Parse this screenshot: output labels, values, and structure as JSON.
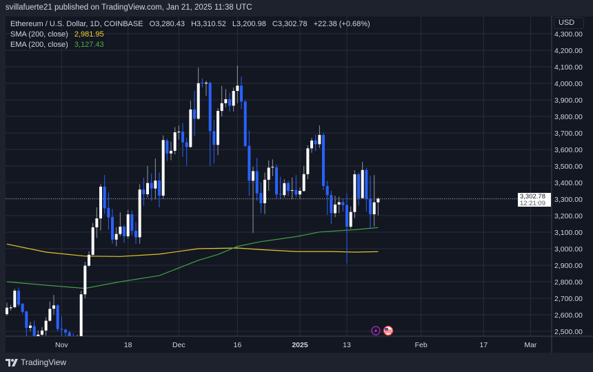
{
  "publisher_line": "svillafuerte21 published on TradingView.com, Jan 21, 2025 11:38 UTC",
  "legend": {
    "symbol": "Ethereum / U.S. Dollar, 1D, COINBASE",
    "open": "O3,280.43",
    "high": "H3,310.52",
    "low": "L3,200.98",
    "close": "C3,302.78",
    "change": "+22.38 (+0.68%)",
    "sma_label": "SMA (200, close)",
    "sma_value": "2,981.95",
    "ema_label": "EMA (200, close)",
    "ema_value": "3,127.43"
  },
  "price_axis": {
    "currency": "USD",
    "last_price": "3,302.78",
    "countdown": "12:21:09"
  },
  "footer": {
    "brand": "TradingView"
  },
  "colors": {
    "background": "#131722",
    "up": "#ffffff",
    "down": "#2962ff",
    "sma": "#e6c729",
    "ema": "#43a047",
    "grid": "#2a2e39"
  },
  "icons": [
    "lightning-event-icon",
    "us-flag-event-icon",
    "tradingview-logo-icon"
  ],
  "chart_data": {
    "type": "candlestick",
    "title": "Ethereum / U.S. Dollar, 1D, COINBASE",
    "ylim": [
      2471,
      4404
    ],
    "grid": true,
    "price_ticks": [
      "4,300.00",
      "4,200.00",
      "4,100.00",
      "4,000.00",
      "3,900.00",
      "3,800.00",
      "3,700.00",
      "3,600.00",
      "3,500.00",
      "3,400.00",
      "3,300.00",
      "3,200.00",
      "3,100.00",
      "3,000.00",
      "2,900.00",
      "2,800.00",
      "2,700.00",
      "2,600.00",
      "2,500.00"
    ],
    "time_ticks": [
      {
        "label": "Nov",
        "date": "2024-11-01",
        "bold": false
      },
      {
        "label": "18",
        "date": "2024-11-18",
        "bold": false
      },
      {
        "label": "Dec",
        "date": "2024-12-01",
        "bold": false
      },
      {
        "label": "16",
        "date": "2024-12-16",
        "bold": false
      },
      {
        "label": "2025",
        "date": "2025-01-01",
        "bold": true
      },
      {
        "label": "13",
        "date": "2025-01-13",
        "bold": false
      },
      {
        "label": "Feb",
        "date": "2025-02-01",
        "bold": false
      },
      {
        "label": "17",
        "date": "2025-02-17",
        "bold": false
      },
      {
        "label": "Mar",
        "date": "2025-03-01",
        "bold": false
      }
    ],
    "candles_columns": [
      "date",
      "open",
      "high",
      "low",
      "close"
    ],
    "candles": [
      [
        "2024-10-18",
        2604,
        2673,
        2594,
        2643
      ],
      [
        "2024-10-19",
        2640,
        2660,
        2625,
        2645
      ],
      [
        "2024-10-20",
        2646,
        2758,
        2640,
        2746
      ],
      [
        "2024-10-21",
        2746,
        2765,
        2650,
        2662
      ],
      [
        "2024-10-22",
        2667,
        2672,
        2605,
        2618
      ],
      [
        "2024-10-23",
        2620,
        2625,
        2470,
        2521
      ],
      [
        "2024-10-24",
        2521,
        2557,
        2500,
        2535
      ],
      [
        "2024-10-25",
        2532,
        2565,
        2420,
        2440
      ],
      [
        "2024-10-26",
        2445,
        2505,
        2420,
        2480
      ],
      [
        "2024-10-27",
        2480,
        2525,
        2460,
        2505
      ],
      [
        "2024-10-28",
        2505,
        2585,
        2475,
        2564
      ],
      [
        "2024-10-29",
        2564,
        2680,
        2560,
        2636
      ],
      [
        "2024-10-30",
        2637,
        2720,
        2600,
        2657
      ],
      [
        "2024-10-31",
        2657,
        2665,
        2500,
        2514
      ],
      [
        "2024-11-01",
        2515,
        2590,
        2460,
        2510
      ],
      [
        "2024-11-02",
        2510,
        2515,
        2470,
        2493
      ],
      [
        "2024-11-03",
        2493,
        2505,
        2430,
        2440
      ],
      [
        "2024-11-04",
        2450,
        2490,
        2420,
        2435
      ],
      [
        "2024-11-05",
        2430,
        2480,
        2420,
        2445
      ],
      [
        "2024-11-06",
        2440,
        2745,
        2430,
        2724
      ],
      [
        "2024-11-07",
        2724,
        2920,
        2700,
        2897
      ],
      [
        "2024-11-08",
        2897,
        2985,
        2890,
        2963
      ],
      [
        "2024-11-09",
        2963,
        3155,
        2955,
        3129
      ],
      [
        "2024-11-10",
        3129,
        3250,
        3065,
        3183
      ],
      [
        "2024-11-11",
        3183,
        3390,
        3110,
        3375
      ],
      [
        "2024-11-12",
        3375,
        3445,
        3210,
        3244
      ],
      [
        "2024-11-13",
        3247,
        3340,
        3115,
        3189
      ],
      [
        "2024-11-14",
        3192,
        3240,
        3030,
        3055
      ],
      [
        "2024-11-15",
        3055,
        3130,
        3015,
        3089
      ],
      [
        "2024-11-16",
        3089,
        3220,
        3075,
        3133
      ],
      [
        "2024-11-17",
        3133,
        3145,
        3035,
        3075
      ],
      [
        "2024-11-18",
        3075,
        3235,
        3060,
        3208
      ],
      [
        "2024-11-19",
        3208,
        3230,
        3080,
        3108
      ],
      [
        "2024-11-20",
        3108,
        3160,
        3030,
        3069
      ],
      [
        "2024-11-21",
        3069,
        3390,
        3030,
        3358
      ],
      [
        "2024-11-22",
        3358,
        3430,
        3260,
        3329
      ],
      [
        "2024-11-23",
        3329,
        3500,
        3310,
        3397
      ],
      [
        "2024-11-24",
        3397,
        3455,
        3290,
        3364
      ],
      [
        "2024-11-25",
        3364,
        3545,
        3300,
        3412
      ],
      [
        "2024-11-26",
        3412,
        3460,
        3250,
        3321
      ],
      [
        "2024-11-27",
        3321,
        3685,
        3300,
        3657
      ],
      [
        "2024-11-28",
        3654,
        3665,
        3530,
        3576
      ],
      [
        "2024-11-29",
        3576,
        3648,
        3535,
        3592
      ],
      [
        "2024-11-30",
        3592,
        3735,
        3570,
        3704
      ],
      [
        "2024-12-01",
        3704,
        3745,
        3660,
        3708
      ],
      [
        "2024-12-02",
        3708,
        3760,
        3555,
        3643
      ],
      [
        "2024-12-03",
        3643,
        3670,
        3500,
        3615
      ],
      [
        "2024-12-04",
        3615,
        3895,
        3610,
        3842
      ],
      [
        "2024-12-05",
        3842,
        3955,
        3680,
        3786
      ],
      [
        "2024-12-06",
        3786,
        4095,
        3780,
        4001
      ],
      [
        "2024-12-07",
        4004,
        4030,
        3975,
        3999
      ],
      [
        "2024-12-08",
        3999,
        4015,
        3925,
        4004
      ],
      [
        "2024-12-09",
        4004,
        4010,
        3500,
        3711
      ],
      [
        "2024-12-10",
        3711,
        3780,
        3515,
        3628
      ],
      [
        "2024-12-11",
        3628,
        3850,
        3565,
        3833
      ],
      [
        "2024-12-12",
        3833,
        3985,
        3800,
        3880
      ],
      [
        "2024-12-13",
        3880,
        3965,
        3855,
        3904
      ],
      [
        "2024-12-14",
        3904,
        3942,
        3830,
        3865
      ],
      [
        "2024-12-15",
        3865,
        3975,
        3830,
        3954
      ],
      [
        "2024-12-16",
        3954,
        4108,
        3880,
        3986
      ],
      [
        "2024-12-17",
        3986,
        4040,
        3845,
        3890
      ],
      [
        "2024-12-18",
        3890,
        3900,
        3615,
        3621
      ],
      [
        "2024-12-19",
        3622,
        3715,
        3320,
        3411
      ],
      [
        "2024-12-20",
        3411,
        3495,
        3095,
        3469
      ],
      [
        "2024-12-21",
        3469,
        3550,
        3290,
        3335
      ],
      [
        "2024-12-22",
        3337,
        3400,
        3215,
        3275
      ],
      [
        "2024-12-23",
        3275,
        3460,
        3210,
        3417
      ],
      [
        "2024-12-24",
        3417,
        3535,
        3350,
        3490
      ],
      [
        "2024-12-25",
        3492,
        3540,
        3440,
        3495
      ],
      [
        "2024-12-26",
        3492,
        3510,
        3300,
        3328
      ],
      [
        "2024-12-27",
        3332,
        3435,
        3300,
        3328
      ],
      [
        "2024-12-28",
        3324,
        3420,
        3310,
        3396
      ],
      [
        "2024-12-29",
        3396,
        3410,
        3320,
        3349
      ],
      [
        "2024-12-30",
        3350,
        3430,
        3300,
        3354
      ],
      [
        "2024-12-31",
        3354,
        3445,
        3310,
        3328
      ],
      [
        "2025-01-01",
        3328,
        3370,
        3300,
        3350
      ],
      [
        "2025-01-02",
        3349,
        3500,
        3345,
        3451
      ],
      [
        "2025-01-03",
        3451,
        3625,
        3420,
        3607
      ],
      [
        "2025-01-04",
        3607,
        3670,
        3580,
        3654
      ],
      [
        "2025-01-05",
        3654,
        3690,
        3590,
        3632
      ],
      [
        "2025-01-06",
        3632,
        3745,
        3610,
        3688
      ],
      [
        "2025-01-07",
        3688,
        3700,
        3355,
        3379
      ],
      [
        "2025-01-08",
        3379,
        3410,
        3205,
        3324
      ],
      [
        "2025-01-09",
        3324,
        3350,
        3150,
        3215
      ],
      [
        "2025-01-10",
        3215,
        3320,
        3190,
        3267
      ],
      [
        "2025-01-11",
        3267,
        3315,
        3215,
        3281
      ],
      [
        "2025-01-12",
        3281,
        3300,
        3225,
        3264
      ],
      [
        "2025-01-13",
        3264,
        3335,
        2910,
        3133
      ],
      [
        "2025-01-14",
        3133,
        3255,
        3120,
        3222
      ],
      [
        "2025-01-15",
        3222,
        3475,
        3185,
        3450
      ],
      [
        "2025-01-16",
        3450,
        3460,
        3260,
        3306
      ],
      [
        "2025-01-17",
        3306,
        3525,
        3305,
        3476
      ],
      [
        "2025-01-18",
        3476,
        3490,
        3225,
        3301
      ],
      [
        "2025-01-19",
        3301,
        3440,
        3125,
        3208
      ],
      [
        "2025-01-20",
        3208,
        3445,
        3135,
        3280.43
      ],
      [
        "2025-01-21",
        3280.43,
        3310.52,
        3200.98,
        3302.78
      ]
    ],
    "series": [
      {
        "name": "SMA (200, close)",
        "type": "line",
        "points": [
          [
            "2024-10-18",
            3028
          ],
          [
            "2024-10-28",
            2979
          ],
          [
            "2024-11-07",
            2955
          ],
          [
            "2024-11-16",
            2953
          ],
          [
            "2024-11-26",
            2967
          ],
          [
            "2024-12-06",
            3000
          ],
          [
            "2024-12-16",
            3004
          ],
          [
            "2024-12-22",
            2994
          ],
          [
            "2024-12-31",
            2983
          ],
          [
            "2025-01-09",
            2983
          ],
          [
            "2025-01-15",
            2979
          ],
          [
            "2025-01-21",
            2981.95
          ]
        ]
      },
      {
        "name": "EMA (200, close)",
        "type": "line",
        "points": [
          [
            "2024-10-18",
            2800
          ],
          [
            "2024-10-28",
            2779
          ],
          [
            "2024-11-07",
            2760
          ],
          [
            "2024-11-16",
            2800
          ],
          [
            "2024-11-26",
            2837
          ],
          [
            "2024-12-06",
            2930
          ],
          [
            "2024-12-11",
            2965
          ],
          [
            "2024-12-16",
            3014
          ],
          [
            "2024-12-22",
            3043
          ],
          [
            "2024-12-31",
            3073
          ],
          [
            "2025-01-06",
            3101
          ],
          [
            "2025-01-15",
            3115
          ],
          [
            "2025-01-21",
            3127.43
          ]
        ]
      }
    ],
    "last_price_line": 3302.78
  }
}
